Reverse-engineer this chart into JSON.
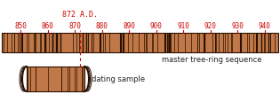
{
  "bg_color": "#ffffff",
  "bar_color": "#c07848",
  "bar_outline": "#2a1000",
  "ring_color": "#2a1000",
  "tick_color": "#cc0000",
  "label_color": "#cc0000",
  "annotation_color": "#cc0000",
  "text_color": "#222222",
  "tick_years": [
    850,
    860,
    870,
    880,
    890,
    900,
    910,
    920,
    930,
    940
  ],
  "year_start": 843,
  "year_end": 945,
  "highlight_year": 872,
  "highlight_label": "872 A.D.",
  "master_label": "master tree-ring sequence",
  "sample_label": "dating sample",
  "num_rings_master": 95,
  "num_rings_sample": 13
}
